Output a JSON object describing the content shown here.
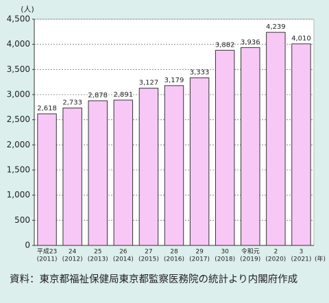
{
  "chart_data": {
    "type": "bar",
    "y_unit": "(人)",
    "x_unit": "(年)",
    "categories": [
      "平成23",
      "24",
      "25",
      "26",
      "27",
      "28",
      "29",
      "30",
      "令和元",
      "2",
      "3"
    ],
    "category_years": [
      "(2011)",
      "(2012)",
      "(2013)",
      "(2014)",
      "(2015)",
      "(2016)",
      "(2017)",
      "(2018)",
      "(2019)",
      "(2020)",
      "(2021)"
    ],
    "values": [
      2618,
      2733,
      2878,
      2891,
      3127,
      3179,
      3333,
      3882,
      3936,
      4239,
      4010
    ],
    "value_labels": [
      "2,618",
      "2,733",
      "2,878",
      "2,891",
      "3,127",
      "3,179",
      "3,333",
      "3,882",
      "3,936",
      "4,239",
      "4,010"
    ],
    "color": "#f7c8f5",
    "ylim": [
      0,
      4500
    ],
    "yticks": [
      0,
      {
        "value": 500,
        "label": "500"
      },
      {
        "value": 1000,
        "label": "1,000"
      },
      {
        "value": 1500,
        "label": "1,500"
      },
      {
        "value": 2000,
        "label": "2,000"
      },
      {
        "value": 2500,
        "label": "2,500"
      },
      {
        "value": 3000,
        "label": "3,000"
      },
      {
        "value": 3500,
        "label": "3,500"
      },
      {
        "value": 4000,
        "label": "4,000"
      },
      {
        "value": 4500,
        "label": "4,500"
      }
    ],
    "grid": true,
    "source": "資料：東京都福祉保健局東京都監察医務院の統計より内閣府作成"
  }
}
